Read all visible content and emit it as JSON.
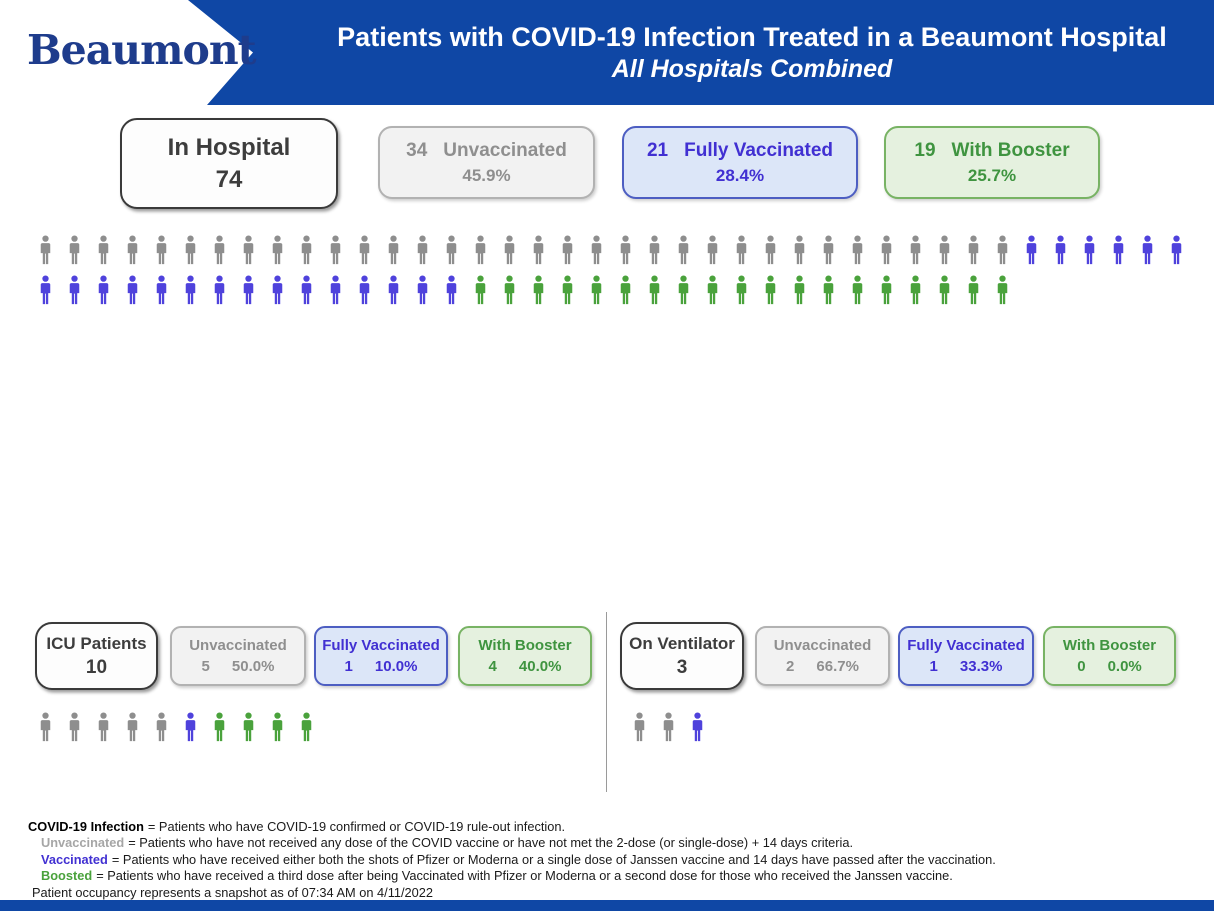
{
  "header": {
    "logo": "Beaumont",
    "title_line1": "Patients with COVID-19 Infection Treated in a Beaumont Hospital",
    "title_line2": "All Hospitals Combined"
  },
  "colors": {
    "header-blue": "#0f47a5",
    "logo-blue": "#1e3c8c",
    "dark-border": "#3a3a3a",
    "dark-text": "#3d3d3d",
    "gray-bg": "#f2f2f2",
    "gray-border": "#b2b2b2",
    "gray-text": "#8f8f8f",
    "blue-bg": "#dce6f8",
    "blue-border": "#4d5ec2",
    "blue-text": "#4130d2",
    "green-bg": "#e5f1df",
    "green-border": "#78b364",
    "green-text": "#3f9440",
    "icon-gray": "#8e8e8e",
    "icon-blue": "#4f42dc",
    "icon-green": "#4aa23c",
    "fn-gray": "#a6a6a6"
  },
  "hospital": {
    "total_label": "In Hospital",
    "total": "74",
    "stats": [
      {
        "count": "34",
        "label": "Unvaccinated",
        "pct": "45.9%"
      },
      {
        "count": "21",
        "label": "Fully Vaccinated",
        "pct": "28.4%"
      },
      {
        "count": "19",
        "label": "With Booster",
        "pct": "25.7%"
      }
    ],
    "pictogram_rows": [
      [
        {
          "color": "gray",
          "count": 34
        },
        {
          "color": "blue",
          "count": 6
        }
      ],
      [
        {
          "color": "blue",
          "count": 15
        },
        {
          "color": "green",
          "count": 19
        }
      ]
    ]
  },
  "icu": {
    "total_label": "ICU Patients",
    "total": "10",
    "stats": [
      {
        "label": "Unvaccinated",
        "count": "5",
        "pct": "50.0%"
      },
      {
        "label": "Fully Vaccinated",
        "count": "1",
        "pct": "10.0%"
      },
      {
        "label": "With Booster",
        "count": "4",
        "pct": "40.0%"
      }
    ],
    "pictogram": [
      {
        "color": "gray",
        "count": 5
      },
      {
        "color": "blue",
        "count": 1
      },
      {
        "color": "green",
        "count": 4
      }
    ]
  },
  "ventilator": {
    "total_label": "On Ventilator",
    "total": "3",
    "stats": [
      {
        "label": "Unvaccinated",
        "count": "2",
        "pct": "66.7%"
      },
      {
        "label": "Fully Vaccinated",
        "count": "1",
        "pct": "33.3%"
      },
      {
        "label": "With Booster",
        "count": "0",
        "pct": "0.0%"
      }
    ],
    "pictogram": [
      {
        "color": "gray",
        "count": 2
      },
      {
        "color": "blue",
        "count": 1
      }
    ]
  },
  "footnotes": [
    {
      "term": "COVID-19 Infection",
      "text": "= Patients who have COVID-19 confirmed or COVID-19 rule-out infection."
    },
    {
      "term": "Unvaccinated",
      "text": "= Patients who have not received any dose of the COVID vaccine or have not met the 2-dose (or single-dose) + 14 days criteria."
    },
    {
      "term": "Vaccinated",
      "text": "= Patients who have received either both the shots of Pfizer or Moderna or a single dose of Janssen vaccine and 14 days have passed after the vaccination."
    },
    {
      "term": "Boosted",
      "text": "= Patients who have received a third dose after being Vaccinated with Pfizer or Moderna or a second dose for those who received the Janssen vaccine."
    },
    {
      "term": "",
      "text": "Patient occupancy represents a snapshot as of 07:34 AM on 4/11/2022"
    }
  ],
  "chart_data": {
    "type": "pictograph",
    "title": "Patients with COVID-19 Infection Treated in a Beaumont Hospital",
    "subtitle": "All Hospitals Combined",
    "categories": [
      "Unvaccinated",
      "Fully Vaccinated",
      "With Booster"
    ],
    "legend_colors": {
      "Unvaccinated": "#8e8e8e",
      "Fully Vaccinated": "#4f42dc",
      "With Booster": "#4aa23c"
    },
    "groups": [
      {
        "name": "In Hospital",
        "total": 74,
        "values": [
          34,
          21,
          19
        ],
        "percents": [
          45.9,
          28.4,
          25.7
        ]
      },
      {
        "name": "ICU Patients",
        "total": 10,
        "values": [
          5,
          1,
          4
        ],
        "percents": [
          50.0,
          10.0,
          40.0
        ]
      },
      {
        "name": "On Ventilator",
        "total": 3,
        "values": [
          2,
          1,
          0
        ],
        "percents": [
          66.7,
          33.3,
          0.0
        ]
      }
    ],
    "snapshot": "07:34 AM on 4/11/2022"
  }
}
